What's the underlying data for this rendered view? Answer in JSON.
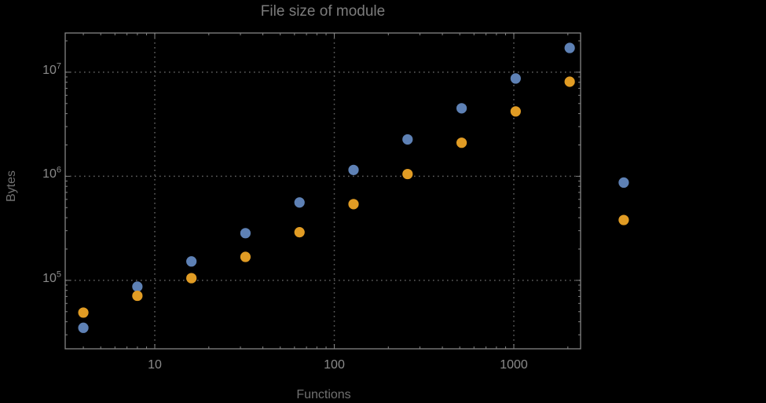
{
  "colors": {
    "background": "#000000",
    "frame": "#848484",
    "gridline": "#606060",
    "title_text": "#7c7c7c",
    "axis_label_text": "#707070",
    "tick_label_text": "#8a8a8a",
    "series_blue": "#5e81b5",
    "series_orange": "#e19c24"
  },
  "chart_data": {
    "type": "scatter",
    "title": "File size of module",
    "xlabel": "Functions",
    "ylabel": "Bytes",
    "x_scale": "log",
    "y_scale": "log",
    "xlim": [
      3.17,
      2355
    ],
    "ylim": [
      22000,
      23800000
    ],
    "grid": true,
    "legend": "none",
    "x_gridlines": [
      10,
      100,
      1000
    ],
    "y_gridlines": [
      100000,
      1000000,
      10000000
    ],
    "x_tick_labels": [
      "10",
      "100",
      "1000"
    ],
    "y_tick_labels": [
      {
        "base": "10",
        "exp": "5"
      },
      {
        "base": "10",
        "exp": "6"
      },
      {
        "base": "10",
        "exp": "7"
      }
    ],
    "x": [
      4,
      8,
      16,
      32,
      64,
      128,
      256,
      512,
      1024,
      2048,
      4096
    ],
    "series": [
      {
        "name": "blue",
        "color": "#5e81b5",
        "values": [
          35000,
          87000,
          152000,
          284000,
          560000,
          1150000,
          2260000,
          4500000,
          8700000,
          17100000,
          870000
        ]
      },
      {
        "name": "orange",
        "color": "#e19c24",
        "values": [
          49000,
          71000,
          105000,
          168000,
          290000,
          540000,
          1050000,
          2100000,
          4200000,
          8100000,
          380000
        ]
      }
    ]
  }
}
